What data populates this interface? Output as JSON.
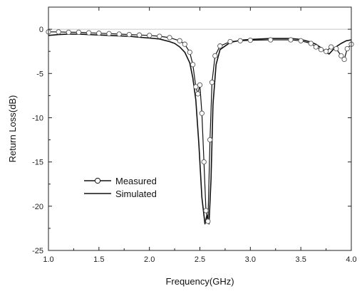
{
  "chart_data": {
    "type": "line",
    "title": "",
    "xlabel": "Frequency(GHz)",
    "ylabel": "Return Loss(dB)",
    "xlim": [
      1.0,
      4.0
    ],
    "ylim": [
      -25,
      2.5
    ],
    "grid": false,
    "zero_reference_line": true,
    "legend_position": "lower-left",
    "x_ticks": [
      1.0,
      1.5,
      2.0,
      2.5,
      3.0,
      3.5,
      4.0
    ],
    "x_tick_labels": [
      "1.0",
      "1.5",
      "2.0",
      "2.5",
      "3.0",
      "3.5",
      "4.0"
    ],
    "y_ticks": [
      0,
      -5,
      -10,
      -15,
      -20,
      -25
    ],
    "y_tick_labels": [
      "0",
      "-5",
      "-10",
      "-15",
      "-20",
      "-25"
    ],
    "series": [
      {
        "name": "Measured",
        "style": "line-with-open-circles",
        "color": "#111111",
        "x": [
          1.0,
          1.1,
          1.2,
          1.3,
          1.4,
          1.5,
          1.6,
          1.7,
          1.8,
          1.9,
          2.0,
          2.1,
          2.2,
          2.3,
          2.35,
          2.4,
          2.43,
          2.46,
          2.48,
          2.5,
          2.52,
          2.54,
          2.56,
          2.58,
          2.6,
          2.62,
          2.65,
          2.7,
          2.8,
          2.9,
          3.0,
          3.2,
          3.4,
          3.5,
          3.6,
          3.65,
          3.7,
          3.75,
          3.8,
          3.85,
          3.9,
          3.93,
          3.96,
          4.0
        ],
        "y": [
          -0.3,
          -0.3,
          -0.35,
          -0.35,
          -0.4,
          -0.45,
          -0.5,
          -0.55,
          -0.6,
          -0.65,
          -0.7,
          -0.8,
          -0.95,
          -1.3,
          -1.7,
          -2.6,
          -4.0,
          -6.5,
          -7.3,
          -6.3,
          -9.5,
          -15.0,
          -20.5,
          -21.7,
          -12.5,
          -6.0,
          -3.0,
          -1.9,
          -1.4,
          -1.3,
          -1.25,
          -1.2,
          -1.2,
          -1.3,
          -1.6,
          -2.0,
          -2.3,
          -2.5,
          -2.0,
          -2.2,
          -3.0,
          -3.4,
          -2.2,
          -1.7
        ]
      },
      {
        "name": "Simulated",
        "style": "solid-line",
        "color": "#111111",
        "x": [
          1.0,
          1.1,
          1.2,
          1.3,
          1.4,
          1.5,
          1.6,
          1.7,
          1.8,
          1.9,
          2.0,
          2.1,
          2.2,
          2.25,
          2.3,
          2.35,
          2.4,
          2.43,
          2.46,
          2.49,
          2.52,
          2.55,
          2.57,
          2.59,
          2.61,
          2.63,
          2.66,
          2.7,
          2.8,
          2.9,
          3.0,
          3.2,
          3.4,
          3.5,
          3.6,
          3.65,
          3.7,
          3.75,
          3.78,
          3.82,
          3.86,
          3.9,
          3.95,
          4.0
        ],
        "y": [
          -0.7,
          -0.6,
          -0.55,
          -0.55,
          -0.6,
          -0.65,
          -0.7,
          -0.75,
          -0.8,
          -0.9,
          -1.0,
          -1.1,
          -1.4,
          -1.6,
          -2.0,
          -2.6,
          -3.8,
          -5.5,
          -8.0,
          -13.0,
          -19.0,
          -22.0,
          -21.0,
          -22.0,
          -17.0,
          -8.5,
          -4.0,
          -2.3,
          -1.5,
          -1.25,
          -1.15,
          -1.05,
          -1.05,
          -1.15,
          -1.45,
          -1.7,
          -2.1,
          -2.6,
          -2.8,
          -2.3,
          -1.9,
          -1.6,
          -1.3,
          -1.2
        ]
      }
    ]
  }
}
